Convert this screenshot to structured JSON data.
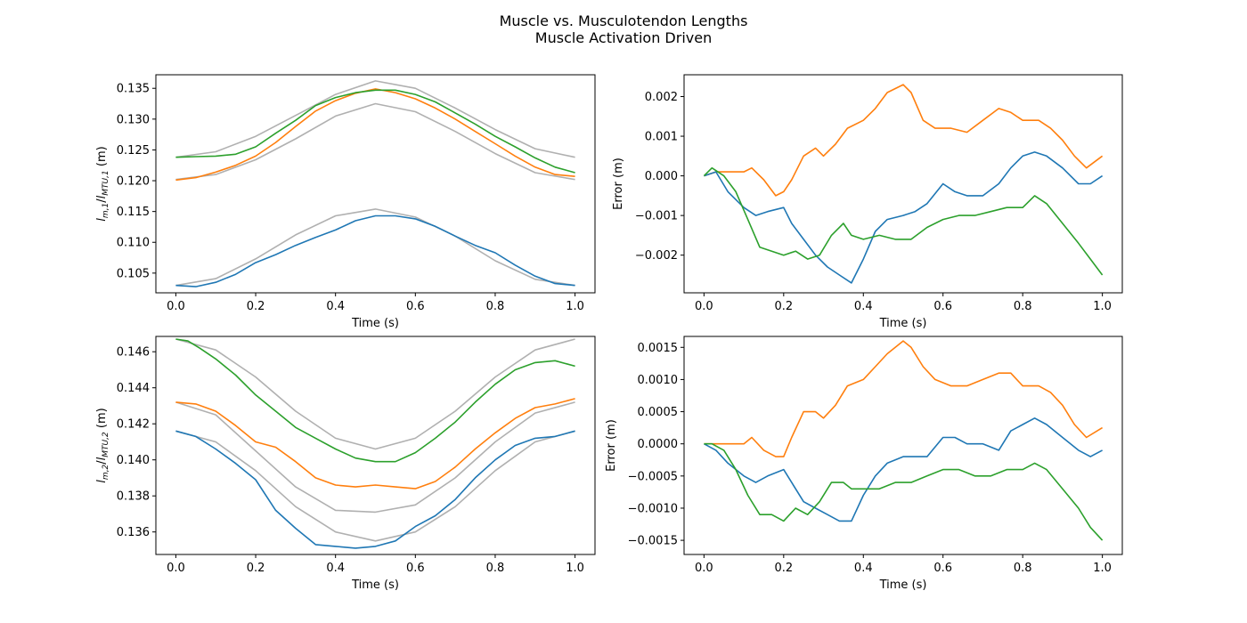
{
  "figure": {
    "title_line1": "Muscle vs. Musculotendon Lengths",
    "title_line2": "Muscle Activation Driven"
  },
  "colors": {
    "blue": "#1f77b4",
    "orange": "#ff7f0e",
    "green": "#2ca02c",
    "gray": "#b0b0b0"
  },
  "chart_data": [
    {
      "type": "line",
      "xlabel": "Time (s)",
      "ylabel": "l_{m,1}/l_{MTU,1} (m)",
      "ylabel_parts": {
        "l1": "l",
        "sub1": "m,1",
        "sep": "/",
        "l2": "l",
        "sub2": "MTU,1",
        "unit": " (m)"
      },
      "xlim": [
        -0.05,
        1.05
      ],
      "ylim": [
        0.1018,
        0.1372
      ],
      "xticks": [
        0.0,
        0.2,
        0.4,
        0.6,
        0.8,
        1.0
      ],
      "xtick_labels": [
        "0.0",
        "0.2",
        "0.4",
        "0.6",
        "0.8",
        "1.0"
      ],
      "yticks": [
        0.105,
        0.11,
        0.115,
        0.12,
        0.125,
        0.13,
        0.135
      ],
      "ytick_labels": [
        "0.105",
        "0.110",
        "0.115",
        "0.120",
        "0.125",
        "0.130",
        "0.135"
      ],
      "series": [
        {
          "color": "gray",
          "x": [
            0.0,
            0.1,
            0.2,
            0.3,
            0.4,
            0.5,
            0.6,
            0.7,
            0.8,
            0.9,
            1.0
          ],
          "y": [
            0.1238,
            0.1247,
            0.1272,
            0.1306,
            0.134,
            0.1362,
            0.135,
            0.1318,
            0.1283,
            0.1252,
            0.1238
          ]
        },
        {
          "color": "gray",
          "x": [
            0.0,
            0.1,
            0.2,
            0.3,
            0.4,
            0.5,
            0.6,
            0.7,
            0.8,
            0.9,
            1.0
          ],
          "y": [
            0.1202,
            0.121,
            0.1234,
            0.1268,
            0.1305,
            0.1325,
            0.1312,
            0.128,
            0.1244,
            0.1213,
            0.1202
          ]
        },
        {
          "color": "gray",
          "x": [
            0.0,
            0.1,
            0.2,
            0.3,
            0.4,
            0.5,
            0.6,
            0.7,
            0.8,
            0.9,
            1.0
          ],
          "y": [
            0.103,
            0.1041,
            0.1073,
            0.1112,
            0.1143,
            0.1154,
            0.1141,
            0.111,
            0.107,
            0.104,
            0.103
          ]
        },
        {
          "color": "orange",
          "x": [
            0.0,
            0.05,
            0.1,
            0.15,
            0.2,
            0.25,
            0.3,
            0.35,
            0.4,
            0.45,
            0.5,
            0.55,
            0.6,
            0.65,
            0.7,
            0.75,
            0.8,
            0.85,
            0.9,
            0.95,
            1.0
          ],
          "y": [
            0.1201,
            0.1205,
            0.1214,
            0.1225,
            0.124,
            0.1262,
            0.1288,
            0.1313,
            0.133,
            0.1342,
            0.1349,
            0.1343,
            0.1333,
            0.1318,
            0.13,
            0.128,
            0.126,
            0.124,
            0.1222,
            0.121,
            0.1207
          ]
        },
        {
          "color": "green",
          "x": [
            0.0,
            0.05,
            0.1,
            0.15,
            0.2,
            0.25,
            0.3,
            0.35,
            0.4,
            0.45,
            0.5,
            0.55,
            0.6,
            0.65,
            0.7,
            0.75,
            0.8,
            0.85,
            0.9,
            0.95,
            1.0
          ],
          "y": [
            0.1238,
            0.1239,
            0.124,
            0.1243,
            0.1255,
            0.1277,
            0.1298,
            0.1322,
            0.1335,
            0.1343,
            0.1347,
            0.1347,
            0.134,
            0.1328,
            0.131,
            0.1292,
            0.1272,
            0.1255,
            0.1237,
            0.1222,
            0.1213
          ]
        },
        {
          "color": "blue",
          "x": [
            0.0,
            0.05,
            0.1,
            0.15,
            0.2,
            0.25,
            0.3,
            0.35,
            0.4,
            0.45,
            0.5,
            0.55,
            0.6,
            0.65,
            0.7,
            0.75,
            0.8,
            0.85,
            0.9,
            0.95,
            1.0
          ],
          "y": [
            0.103,
            0.1028,
            0.1035,
            0.1048,
            0.1067,
            0.108,
            0.1095,
            0.1108,
            0.112,
            0.1135,
            0.1143,
            0.1143,
            0.1138,
            0.1126,
            0.111,
            0.1095,
            0.1083,
            0.1063,
            0.1045,
            0.1033,
            0.103
          ]
        }
      ]
    },
    {
      "type": "line",
      "xlabel": "Time (s)",
      "ylabel": "Error (m)",
      "xlim": [
        -0.05,
        1.05
      ],
      "ylim": [
        -0.00295,
        0.00255
      ],
      "xticks": [
        0.0,
        0.2,
        0.4,
        0.6,
        0.8,
        1.0
      ],
      "xtick_labels": [
        "0.0",
        "0.2",
        "0.4",
        "0.6",
        "0.8",
        "1.0"
      ],
      "yticks": [
        -0.002,
        -0.001,
        0.0,
        0.001,
        0.002
      ],
      "ytick_labels": [
        "−0.002",
        "−0.001",
        "0.000",
        "0.001",
        "0.002"
      ],
      "series": [
        {
          "color": "orange",
          "x": [
            0.0,
            0.03,
            0.06,
            0.1,
            0.12,
            0.15,
            0.18,
            0.2,
            0.22,
            0.25,
            0.28,
            0.3,
            0.33,
            0.36,
            0.4,
            0.43,
            0.46,
            0.5,
            0.52,
            0.55,
            0.58,
            0.62,
            0.66,
            0.7,
            0.74,
            0.77,
            0.8,
            0.84,
            0.87,
            0.9,
            0.93,
            0.96,
            1.0
          ],
          "y": [
            0.0,
            0.0001,
            0.0001,
            0.0001,
            0.0002,
            -0.0001,
            -0.0005,
            -0.0004,
            -0.0001,
            0.0005,
            0.0007,
            0.0005,
            0.0008,
            0.0012,
            0.0014,
            0.0017,
            0.0021,
            0.0023,
            0.0021,
            0.0014,
            0.0012,
            0.0012,
            0.0011,
            0.0014,
            0.0017,
            0.0016,
            0.0014,
            0.0014,
            0.0012,
            0.0009,
            0.0005,
            0.0002,
            0.0005
          ]
        },
        {
          "color": "blue",
          "x": [
            0.0,
            0.03,
            0.06,
            0.1,
            0.13,
            0.16,
            0.2,
            0.22,
            0.25,
            0.28,
            0.31,
            0.34,
            0.37,
            0.4,
            0.43,
            0.46,
            0.5,
            0.53,
            0.56,
            0.6,
            0.63,
            0.66,
            0.7,
            0.74,
            0.77,
            0.8,
            0.83,
            0.86,
            0.9,
            0.94,
            0.97,
            1.0
          ],
          "y": [
            0.0,
            0.0001,
            -0.0004,
            -0.0008,
            -0.001,
            -0.0009,
            -0.0008,
            -0.0012,
            -0.0016,
            -0.002,
            -0.0023,
            -0.0025,
            -0.0027,
            -0.0021,
            -0.0014,
            -0.0011,
            -0.001,
            -0.0009,
            -0.0007,
            -0.0002,
            -0.0004,
            -0.0005,
            -0.0005,
            -0.0002,
            0.0002,
            0.0005,
            0.0006,
            0.0005,
            0.0002,
            -0.0002,
            -0.0002,
            0.0
          ]
        },
        {
          "color": "green",
          "x": [
            0.0,
            0.02,
            0.05,
            0.08,
            0.11,
            0.14,
            0.17,
            0.2,
            0.23,
            0.26,
            0.29,
            0.32,
            0.35,
            0.37,
            0.4,
            0.44,
            0.48,
            0.52,
            0.56,
            0.6,
            0.64,
            0.68,
            0.72,
            0.76,
            0.8,
            0.83,
            0.86,
            0.9,
            0.94,
            0.97,
            1.0
          ],
          "y": [
            0.0,
            0.0002,
            0.0,
            -0.0004,
            -0.0011,
            -0.0018,
            -0.0019,
            -0.002,
            -0.0019,
            -0.0021,
            -0.002,
            -0.0015,
            -0.0012,
            -0.0015,
            -0.0016,
            -0.0015,
            -0.0016,
            -0.0016,
            -0.0013,
            -0.0011,
            -0.001,
            -0.001,
            -0.0009,
            -0.0008,
            -0.0008,
            -0.0005,
            -0.0007,
            -0.0012,
            -0.0017,
            -0.0021,
            -0.0025
          ]
        }
      ]
    },
    {
      "type": "line",
      "xlabel": "Time (s)",
      "ylabel": "l_{m,2}/l_{MTU,2} (m)",
      "ylabel_parts": {
        "l1": "l",
        "sub1": "m,2",
        "sep": "/",
        "l2": "l",
        "sub2": "MTU,2",
        "unit": " (m)"
      },
      "xlim": [
        -0.05,
        1.05
      ],
      "ylim": [
        0.13475,
        0.14685
      ],
      "xticks": [
        0.0,
        0.2,
        0.4,
        0.6,
        0.8,
        1.0
      ],
      "xtick_labels": [
        "0.0",
        "0.2",
        "0.4",
        "0.6",
        "0.8",
        "1.0"
      ],
      "yticks": [
        0.136,
        0.138,
        0.14,
        0.142,
        0.144,
        0.146
      ],
      "ytick_labels": [
        "0.136",
        "0.138",
        "0.140",
        "0.142",
        "0.144",
        "0.146"
      ],
      "series": [
        {
          "color": "gray",
          "x": [
            0.0,
            0.1,
            0.2,
            0.3,
            0.4,
            0.5,
            0.6,
            0.7,
            0.8,
            0.9,
            1.0
          ],
          "y": [
            0.1467,
            0.1461,
            0.1446,
            0.1427,
            0.1412,
            0.1406,
            0.1412,
            0.1427,
            0.1446,
            0.1461,
            0.1467
          ]
        },
        {
          "color": "gray",
          "x": [
            0.0,
            0.1,
            0.2,
            0.3,
            0.4,
            0.5,
            0.6,
            0.7,
            0.8,
            0.9,
            1.0
          ],
          "y": [
            0.1432,
            0.1425,
            0.1405,
            0.1385,
            0.1372,
            0.1371,
            0.1375,
            0.139,
            0.141,
            0.1426,
            0.1432
          ]
        },
        {
          "color": "gray",
          "x": [
            0.0,
            0.1,
            0.2,
            0.3,
            0.4,
            0.5,
            0.6,
            0.7,
            0.8,
            0.9,
            1.0
          ],
          "y": [
            0.1416,
            0.141,
            0.1394,
            0.1374,
            0.136,
            0.1355,
            0.136,
            0.1374,
            0.1394,
            0.141,
            0.1416
          ]
        },
        {
          "color": "green",
          "x": [
            0.0,
            0.03,
            0.06,
            0.1,
            0.15,
            0.2,
            0.25,
            0.3,
            0.35,
            0.4,
            0.45,
            0.5,
            0.55,
            0.6,
            0.65,
            0.7,
            0.75,
            0.8,
            0.85,
            0.9,
            0.95,
            1.0
          ],
          "y": [
            0.1467,
            0.1466,
            0.1462,
            0.1456,
            0.1447,
            0.1436,
            0.1427,
            0.1418,
            0.1412,
            0.1406,
            0.1401,
            0.1399,
            0.1399,
            0.1404,
            0.1412,
            0.1421,
            0.1432,
            0.1442,
            0.145,
            0.1454,
            0.1455,
            0.1452
          ]
        },
        {
          "color": "orange",
          "x": [
            0.0,
            0.05,
            0.1,
            0.15,
            0.2,
            0.25,
            0.3,
            0.35,
            0.4,
            0.45,
            0.5,
            0.55,
            0.6,
            0.65,
            0.7,
            0.75,
            0.8,
            0.85,
            0.9,
            0.95,
            1.0
          ],
          "y": [
            0.1432,
            0.1431,
            0.1427,
            0.1419,
            0.141,
            0.1407,
            0.1399,
            0.139,
            0.1386,
            0.1385,
            0.1386,
            0.1385,
            0.1384,
            0.1388,
            0.1396,
            0.1406,
            0.1415,
            0.1423,
            0.1429,
            0.1431,
            0.1434
          ]
        },
        {
          "color": "blue",
          "x": [
            0.0,
            0.05,
            0.1,
            0.15,
            0.2,
            0.25,
            0.3,
            0.35,
            0.4,
            0.45,
            0.5,
            0.55,
            0.6,
            0.65,
            0.7,
            0.75,
            0.8,
            0.85,
            0.9,
            0.95,
            1.0
          ],
          "y": [
            0.1416,
            0.1413,
            0.1406,
            0.1398,
            0.1389,
            0.1372,
            0.1362,
            0.1353,
            0.1352,
            0.1351,
            0.1352,
            0.1355,
            0.1363,
            0.1369,
            0.1378,
            0.139,
            0.14,
            0.1408,
            0.1412,
            0.1413,
            0.1416
          ]
        }
      ]
    },
    {
      "type": "line",
      "xlabel": "Time (s)",
      "ylabel": "Error (m)",
      "xlim": [
        -0.05,
        1.05
      ],
      "ylim": [
        -0.00172,
        0.00167
      ],
      "xticks": [
        0.0,
        0.2,
        0.4,
        0.6,
        0.8,
        1.0
      ],
      "xtick_labels": [
        "0.0",
        "0.2",
        "0.4",
        "0.6",
        "0.8",
        "1.0"
      ],
      "yticks": [
        -0.0015,
        -0.001,
        -0.0005,
        0.0,
        0.0005,
        0.001,
        0.0015
      ],
      "ytick_labels": [
        "−0.0015",
        "−0.0010",
        "−0.0005",
        "0.0000",
        "0.0005",
        "0.0010",
        "0.0015"
      ],
      "series": [
        {
          "color": "orange",
          "x": [
            0.0,
            0.03,
            0.06,
            0.1,
            0.12,
            0.15,
            0.18,
            0.2,
            0.22,
            0.25,
            0.28,
            0.3,
            0.33,
            0.36,
            0.4,
            0.43,
            0.46,
            0.5,
            0.52,
            0.55,
            0.58,
            0.62,
            0.66,
            0.7,
            0.74,
            0.77,
            0.8,
            0.84,
            0.87,
            0.9,
            0.93,
            0.96,
            1.0
          ],
          "y": [
            0.0,
            0.0,
            0.0,
            0.0,
            0.0001,
            -0.0001,
            -0.0002,
            -0.0002,
            0.0001,
            0.0005,
            0.0005,
            0.0004,
            0.0006,
            0.0009,
            0.001,
            0.0012,
            0.0014,
            0.0016,
            0.0015,
            0.0012,
            0.001,
            0.0009,
            0.0009,
            0.001,
            0.0011,
            0.0011,
            0.0009,
            0.0009,
            0.0008,
            0.0006,
            0.0003,
            0.0001,
            0.00025
          ]
        },
        {
          "color": "blue",
          "x": [
            0.0,
            0.03,
            0.06,
            0.1,
            0.13,
            0.16,
            0.2,
            0.22,
            0.25,
            0.28,
            0.31,
            0.34,
            0.37,
            0.4,
            0.43,
            0.46,
            0.5,
            0.53,
            0.56,
            0.6,
            0.63,
            0.66,
            0.7,
            0.74,
            0.77,
            0.8,
            0.83,
            0.86,
            0.9,
            0.94,
            0.97,
            1.0
          ],
          "y": [
            0.0,
            -0.0001,
            -0.0003,
            -0.0005,
            -0.0006,
            -0.0005,
            -0.0004,
            -0.0006,
            -0.0009,
            -0.001,
            -0.0011,
            -0.0012,
            -0.0012,
            -0.0008,
            -0.0005,
            -0.0003,
            -0.0002,
            -0.0002,
            -0.0002,
            0.0001,
            0.0001,
            0.0,
            0.0,
            -0.0001,
            0.0002,
            0.0003,
            0.0004,
            0.0003,
            0.0001,
            -0.0001,
            -0.0002,
            -0.0001
          ]
        },
        {
          "color": "green",
          "x": [
            0.0,
            0.02,
            0.05,
            0.08,
            0.11,
            0.14,
            0.17,
            0.2,
            0.23,
            0.26,
            0.29,
            0.32,
            0.35,
            0.37,
            0.4,
            0.44,
            0.48,
            0.52,
            0.56,
            0.6,
            0.64,
            0.68,
            0.72,
            0.76,
            0.8,
            0.83,
            0.86,
            0.9,
            0.94,
            0.97,
            1.0
          ],
          "y": [
            0.0,
            0.0,
            -0.0001,
            -0.0004,
            -0.0008,
            -0.0011,
            -0.0011,
            -0.0012,
            -0.001,
            -0.0011,
            -0.0009,
            -0.0006,
            -0.0006,
            -0.0007,
            -0.0007,
            -0.0007,
            -0.0006,
            -0.0006,
            -0.0005,
            -0.0004,
            -0.0004,
            -0.0005,
            -0.0005,
            -0.0004,
            -0.0004,
            -0.0003,
            -0.0004,
            -0.0007,
            -0.001,
            -0.0013,
            -0.0015
          ]
        }
      ]
    }
  ]
}
